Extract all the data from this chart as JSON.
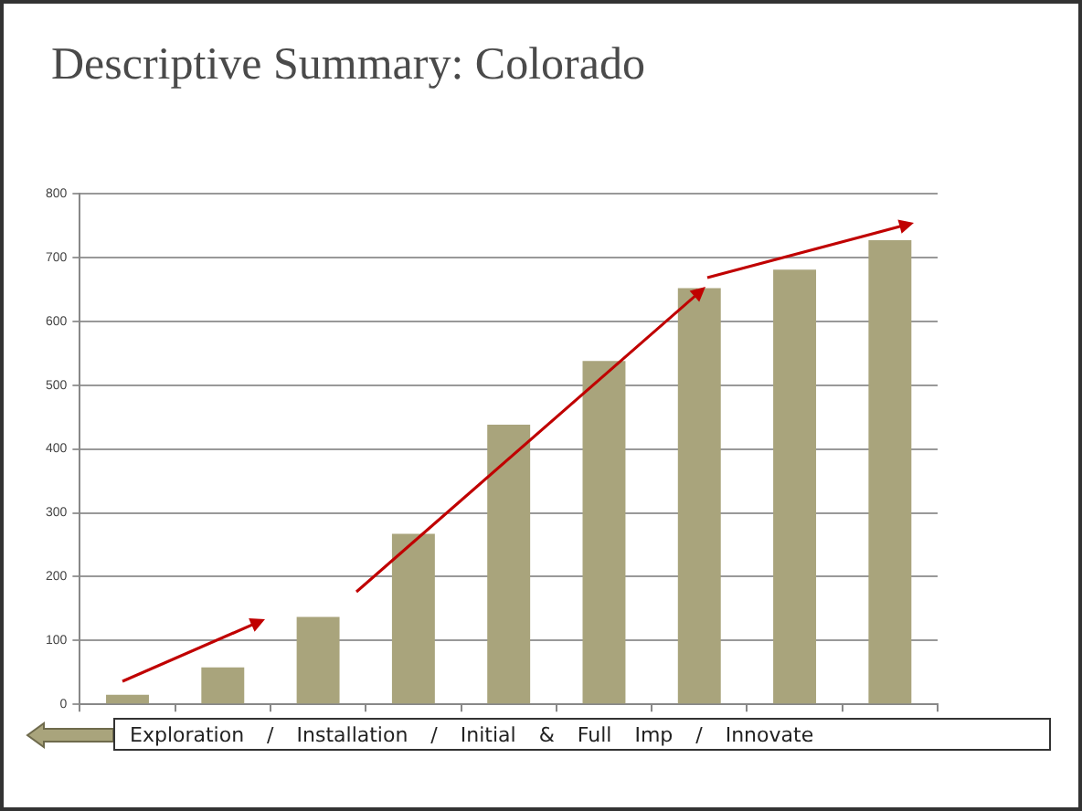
{
  "chart_data": {
    "type": "bar",
    "title": "Descriptive Summary: Colorado",
    "categories": [
      null,
      null,
      null,
      null,
      null,
      null,
      null,
      null,
      null
    ],
    "values": [
      15,
      58,
      137,
      267,
      438,
      538,
      652,
      681,
      727
    ],
    "color": "#a9a47c",
    "ylim": [
      0,
      800
    ],
    "yticks": [
      0,
      100,
      200,
      300,
      400,
      500,
      600,
      700,
      800
    ],
    "grid": "y",
    "legend": false,
    "annotations": [
      "Exploration / Installation / Initial & Full Imp / Innovate"
    ]
  }
}
